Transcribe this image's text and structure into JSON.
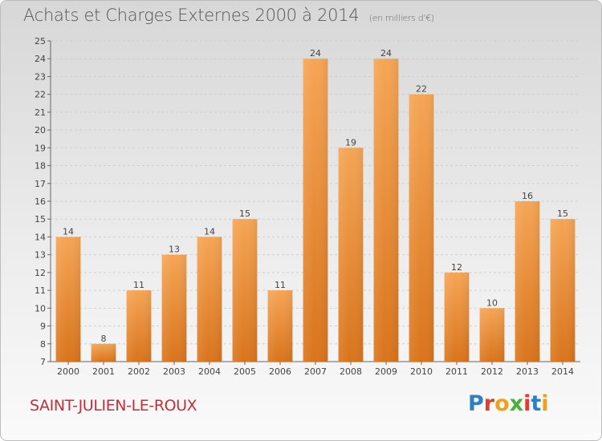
{
  "header": {
    "title": "Achats et Charges Externes 2000 à 2014",
    "subtitle": "(en milliers d'€)"
  },
  "footer": {
    "place": "SAINT-JULIEN-LE-ROUX",
    "logo": "Proxiti",
    "logo_colors": [
      "#2e7fc6",
      "#e23b2f",
      "#f0a020",
      "#4caf3a",
      "#e23b2f",
      "#2e7fc6",
      "#f0a020"
    ]
  },
  "chart_data": {
    "type": "bar",
    "title": "Achats et Charges Externes 2000 à 2014",
    "subtitle": "(en milliers d'€)",
    "categories": [
      "2000",
      "2001",
      "2002",
      "2003",
      "2004",
      "2005",
      "2006",
      "2007",
      "2008",
      "2009",
      "2010",
      "2011",
      "2012",
      "2013",
      "2014"
    ],
    "values": [
      14,
      8,
      11,
      13,
      14,
      15,
      11,
      24,
      19,
      24,
      22,
      12,
      10,
      16,
      15
    ],
    "ylim": [
      7,
      25
    ],
    "yticks": [
      7,
      8,
      9,
      10,
      11,
      12,
      13,
      14,
      15,
      16,
      17,
      18,
      19,
      20,
      21,
      22,
      23,
      24,
      25
    ],
    "grid": true,
    "bar_color_top": "#f5a555",
    "bar_color_bottom": "#d9741c"
  }
}
